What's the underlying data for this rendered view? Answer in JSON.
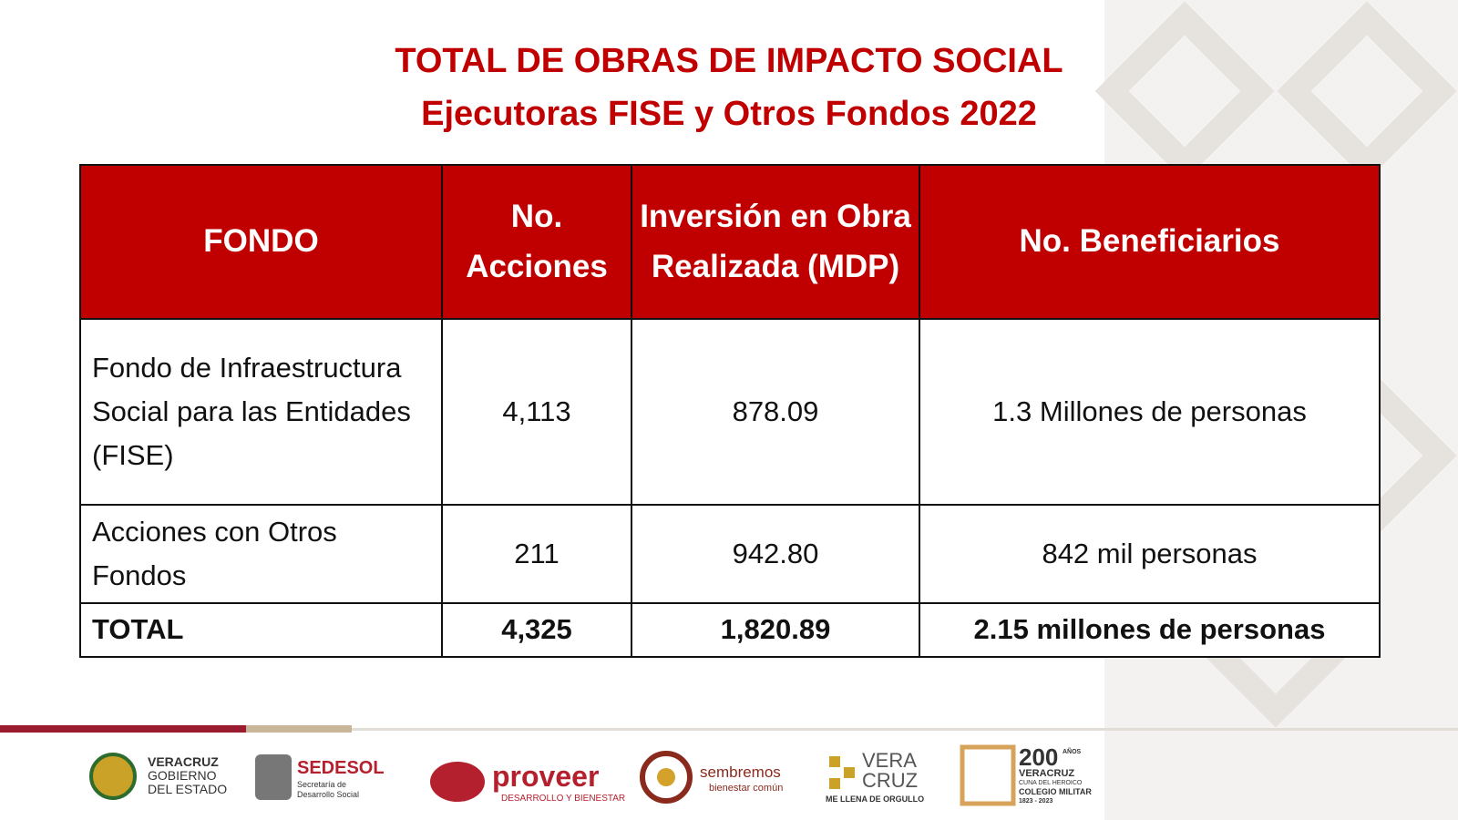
{
  "header": {
    "title": "TOTAL DE OBRAS DE IMPACTO SOCIAL",
    "subtitle": "Ejecutoras FISE y Otros Fondos 2022"
  },
  "table": {
    "columns": [
      "FONDO",
      "No. Acciones",
      "Inversión en Obra Realizada (MDP)",
      "No. Beneficiarios"
    ],
    "rows": [
      [
        "Fondo de Infraestructura Social para las Entidades (FISE)",
        "4,113",
        "878.09",
        "1.3 Millones de personas"
      ],
      [
        "Acciones con Otros Fondos",
        "211",
        "942.80",
        "842 mil personas"
      ],
      [
        "TOTAL",
        "4,325",
        "1,820.89",
        "2.15 millones de personas"
      ]
    ]
  },
  "footer": {
    "logos": [
      {
        "lines": [
          "VERACRUZ",
          "GOBIERNO",
          "DEL ESTADO"
        ]
      },
      {
        "lines": [
          "SEDESOL",
          "Secretaría de",
          "Desarrollo Social"
        ]
      },
      {
        "lines": [
          "proveer",
          "DESARROLLO Y BIENESTAR"
        ]
      },
      {
        "lines": [
          "sembremos",
          "bienestar común"
        ]
      },
      {
        "lines": [
          "VERA",
          "CRUZ",
          "ME LLENA DE ORGULLO"
        ]
      },
      {
        "lines": [
          "200",
          "AÑOS",
          "VERACRUZ",
          "CUNA DEL HEROICO",
          "COLEGIO MILITAR",
          "1823 - 2023"
        ]
      }
    ]
  }
}
